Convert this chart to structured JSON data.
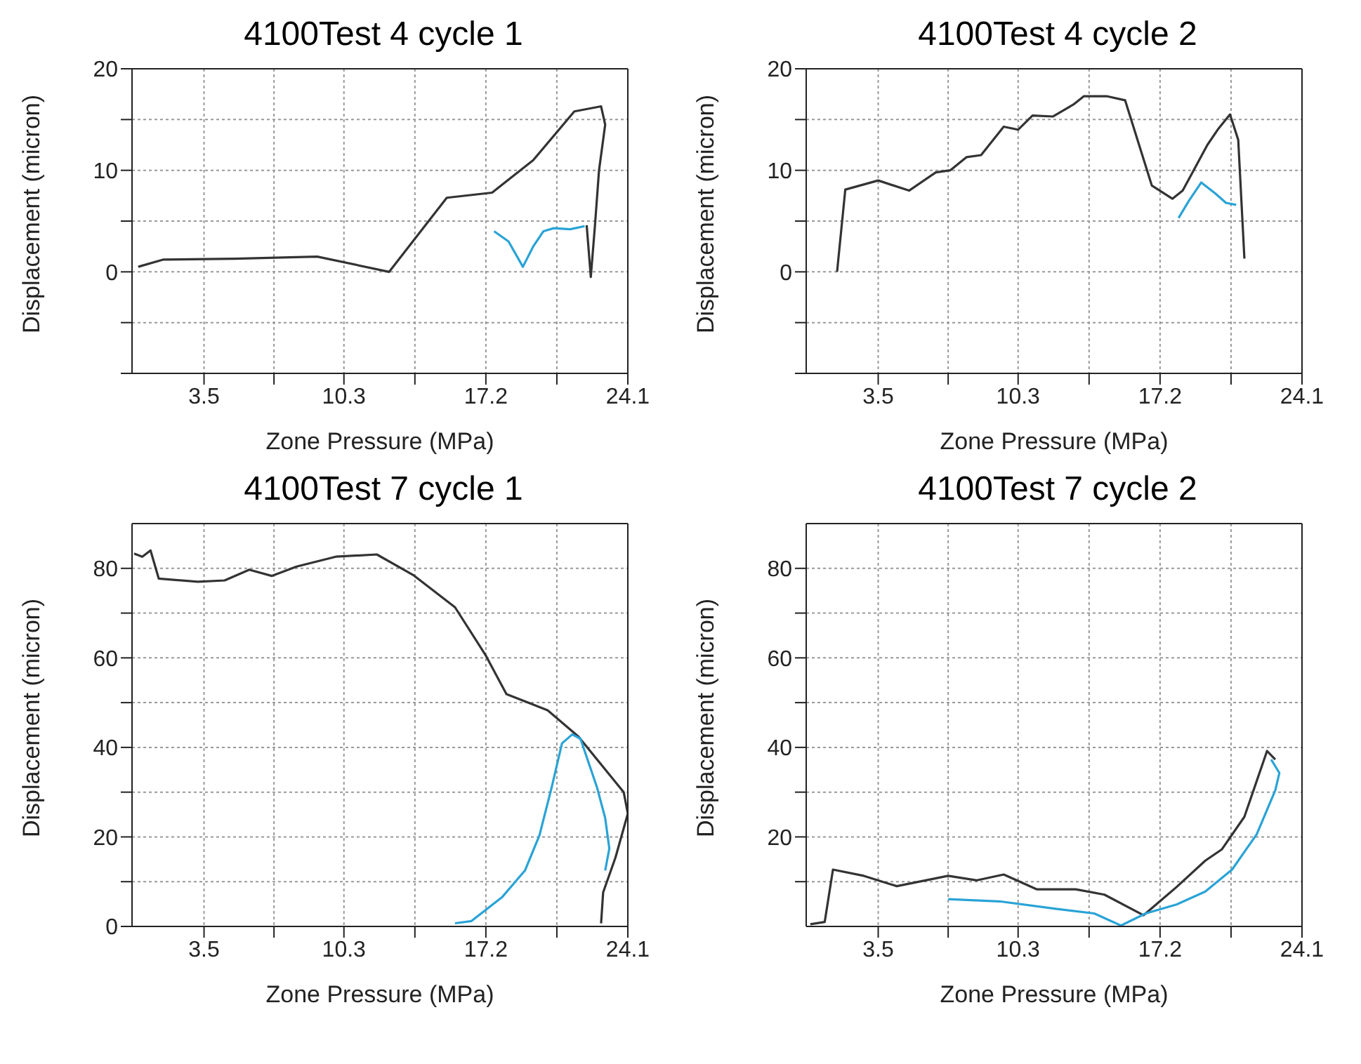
{
  "chart_data": [
    {
      "type": "line",
      "title": "4100Test 4 cycle 1",
      "xlabel": "Zone Pressure (MPa)",
      "ylabel": "Displacement (micron)",
      "grid": true,
      "xlim": [
        0,
        24.1
      ],
      "xticks": [
        3.5,
        {
          "value": 6.9,
          "label": null
        },
        10.3,
        {
          "value": 13.75,
          "label": null
        },
        17.2,
        {
          "value": 20.65,
          "label": null
        },
        24.1
      ],
      "ylim": [
        -10,
        20
      ],
      "yticks": [
        {
          "value": -10,
          "label": null
        },
        {
          "value": -5,
          "label": null
        },
        0,
        {
          "value": 5,
          "label": null
        },
        10,
        {
          "value": 15,
          "label": null
        },
        20
      ],
      "series": [
        {
          "color": "#333333",
          "x": [
            0.3,
            1.5,
            5,
            9,
            12.5,
            15.3,
            17.5,
            19.5,
            21.5,
            22.8,
            23,
            22.7,
            22.5,
            22.3,
            22.1
          ],
          "values": [
            0.5,
            1.2,
            1.3,
            1.5,
            0,
            7.3,
            7.8,
            11,
            15.8,
            16.3,
            14.5,
            10,
            4.5,
            -0.5,
            4.6
          ]
        },
        {
          "color": "#29a3d6",
          "x": [
            17.6,
            18.3,
            19,
            19.5,
            20,
            20.5,
            21.3,
            22
          ],
          "values": [
            4,
            3,
            0.5,
            2.5,
            4,
            4.3,
            4.2,
            4.5
          ]
        }
      ]
    },
    {
      "type": "line",
      "title": "4100Test 4 cycle 2",
      "xlabel": "Zone Pressure (MPa)",
      "ylabel": "Displacement (micron)",
      "grid": true,
      "xlim": [
        0,
        24.1
      ],
      "xticks": [
        3.5,
        {
          "value": 6.9,
          "label": null
        },
        10.3,
        {
          "value": 13.75,
          "label": null
        },
        17.2,
        {
          "value": 20.65,
          "label": null
        },
        24.1
      ],
      "ylim": [
        -10,
        20
      ],
      "yticks": [
        {
          "value": -10,
          "label": null
        },
        {
          "value": -5,
          "label": null
        },
        0,
        {
          "value": 5,
          "label": null
        },
        10,
        {
          "value": 15,
          "label": null
        },
        20
      ],
      "series": [
        {
          "color": "#333333",
          "x": [
            1.5,
            1.9,
            3.5,
            5,
            6.3,
            7,
            7.8,
            8.5,
            9.6,
            10.3,
            11,
            12,
            13,
            13.5,
            14.6,
            15.5,
            16.8,
            17.8,
            18.3,
            19.5,
            20,
            20.6,
            21,
            21.3
          ],
          "values": [
            0,
            8.1,
            9,
            8,
            9.8,
            10,
            11.3,
            11.5,
            14.3,
            14,
            15.4,
            15.3,
            16.5,
            17.3,
            17.3,
            16.9,
            8.5,
            7.2,
            8,
            12.5,
            14,
            15.5,
            13,
            1.3
          ]
        },
        {
          "color": "#29a3d6",
          "x": [
            18.1,
            18.6,
            19.2,
            19.9,
            20.4,
            20.9
          ],
          "values": [
            5.3,
            7,
            8.8,
            7.7,
            6.8,
            6.6
          ]
        }
      ]
    },
    {
      "type": "line",
      "title": "4100Test 7 cycle 1",
      "xlabel": "Zone Pressure (MPa)",
      "ylabel": "Displacement (micron)",
      "grid": true,
      "xlim": [
        0,
        24.1
      ],
      "xticks": [
        3.5,
        {
          "value": 6.9,
          "label": null
        },
        10.3,
        {
          "value": 13.75,
          "label": null
        },
        17.2,
        {
          "value": 20.65,
          "label": null
        },
        24.1
      ],
      "ylim": [
        0,
        90
      ],
      "yticks": [
        0,
        {
          "value": 10,
          "label": null
        },
        20,
        {
          "value": 30,
          "label": null
        },
        40,
        {
          "value": 50,
          "label": null
        },
        60,
        {
          "value": 70,
          "label": null
        },
        80
      ],
      "series": [
        {
          "color": "#333333",
          "x": [
            0.1,
            0.5,
            0.9,
            1.3,
            3.2,
            4.5,
            5.7,
            6.8,
            8,
            9.9,
            11.9,
            13.7,
            15.7,
            17.2,
            18.2,
            20.2,
            21.7,
            23.9,
            24.1,
            23.5,
            22.9,
            22.8
          ],
          "values": [
            83.3,
            82.6,
            84,
            77.7,
            77,
            77.3,
            79.7,
            78.3,
            80.4,
            82.6,
            83.1,
            78.4,
            71.3,
            60.5,
            51.9,
            48.3,
            42.4,
            30,
            25.2,
            15.4,
            7.6,
            0.7
          ]
        },
        {
          "color": "#29a3d6",
          "x": [
            15.7,
            16.5,
            18,
            19.1,
            19.8,
            20.4,
            20.9,
            21.4,
            21.8,
            22.6,
            23,
            23.2,
            23
          ],
          "values": [
            0.7,
            1.2,
            6.6,
            12.5,
            20.3,
            31.1,
            40.9,
            42.9,
            41.9,
            31.1,
            24.2,
            17.4,
            12.5
          ]
        }
      ]
    },
    {
      "type": "line",
      "title": "4100Test 7 cycle 2",
      "xlabel": "Zone Pressure (MPa)",
      "ylabel": "Displacement (micron)",
      "grid": true,
      "xlim": [
        0,
        24.1
      ],
      "xticks": [
        3.5,
        {
          "value": 6.9,
          "label": null
        },
        10.3,
        {
          "value": 13.75,
          "label": null
        },
        17.2,
        {
          "value": 20.65,
          "label": null
        },
        24.1
      ],
      "ylim": [
        0,
        90
      ],
      "yticks": [
        {
          "value": 10,
          "label": null
        },
        20,
        {
          "value": 30,
          "label": null
        },
        40,
        {
          "value": 50,
          "label": null
        },
        60,
        {
          "value": 70,
          "label": null
        },
        80
      ],
      "series": [
        {
          "color": "#333333",
          "x": [
            0.2,
            0.9,
            1.3,
            2.8,
            4.4,
            6.9,
            8.3,
            9.6,
            11.2,
            13.1,
            14.5,
            16.4,
            18,
            19.4,
            20.2,
            21.3,
            22.4,
            22.8
          ],
          "values": [
            0.5,
            1,
            12.7,
            11.3,
            9,
            11.3,
            10.3,
            11.6,
            8.3,
            8.3,
            7.1,
            2.5,
            8.8,
            14.7,
            17.2,
            24.5,
            39.2,
            37.3
          ]
        },
        {
          "color": "#29a3d6",
          "x": [
            6.9,
            9.4,
            12.2,
            14,
            15.3,
            16.5,
            18,
            19.4,
            20.7,
            21.9,
            22.8,
            23,
            22.6
          ],
          "values": [
            6.1,
            5.6,
            3.9,
            2.9,
            0.2,
            2.9,
            4.9,
            7.8,
            12.7,
            20.6,
            30.4,
            34.3,
            37.3
          ]
        }
      ]
    }
  ]
}
